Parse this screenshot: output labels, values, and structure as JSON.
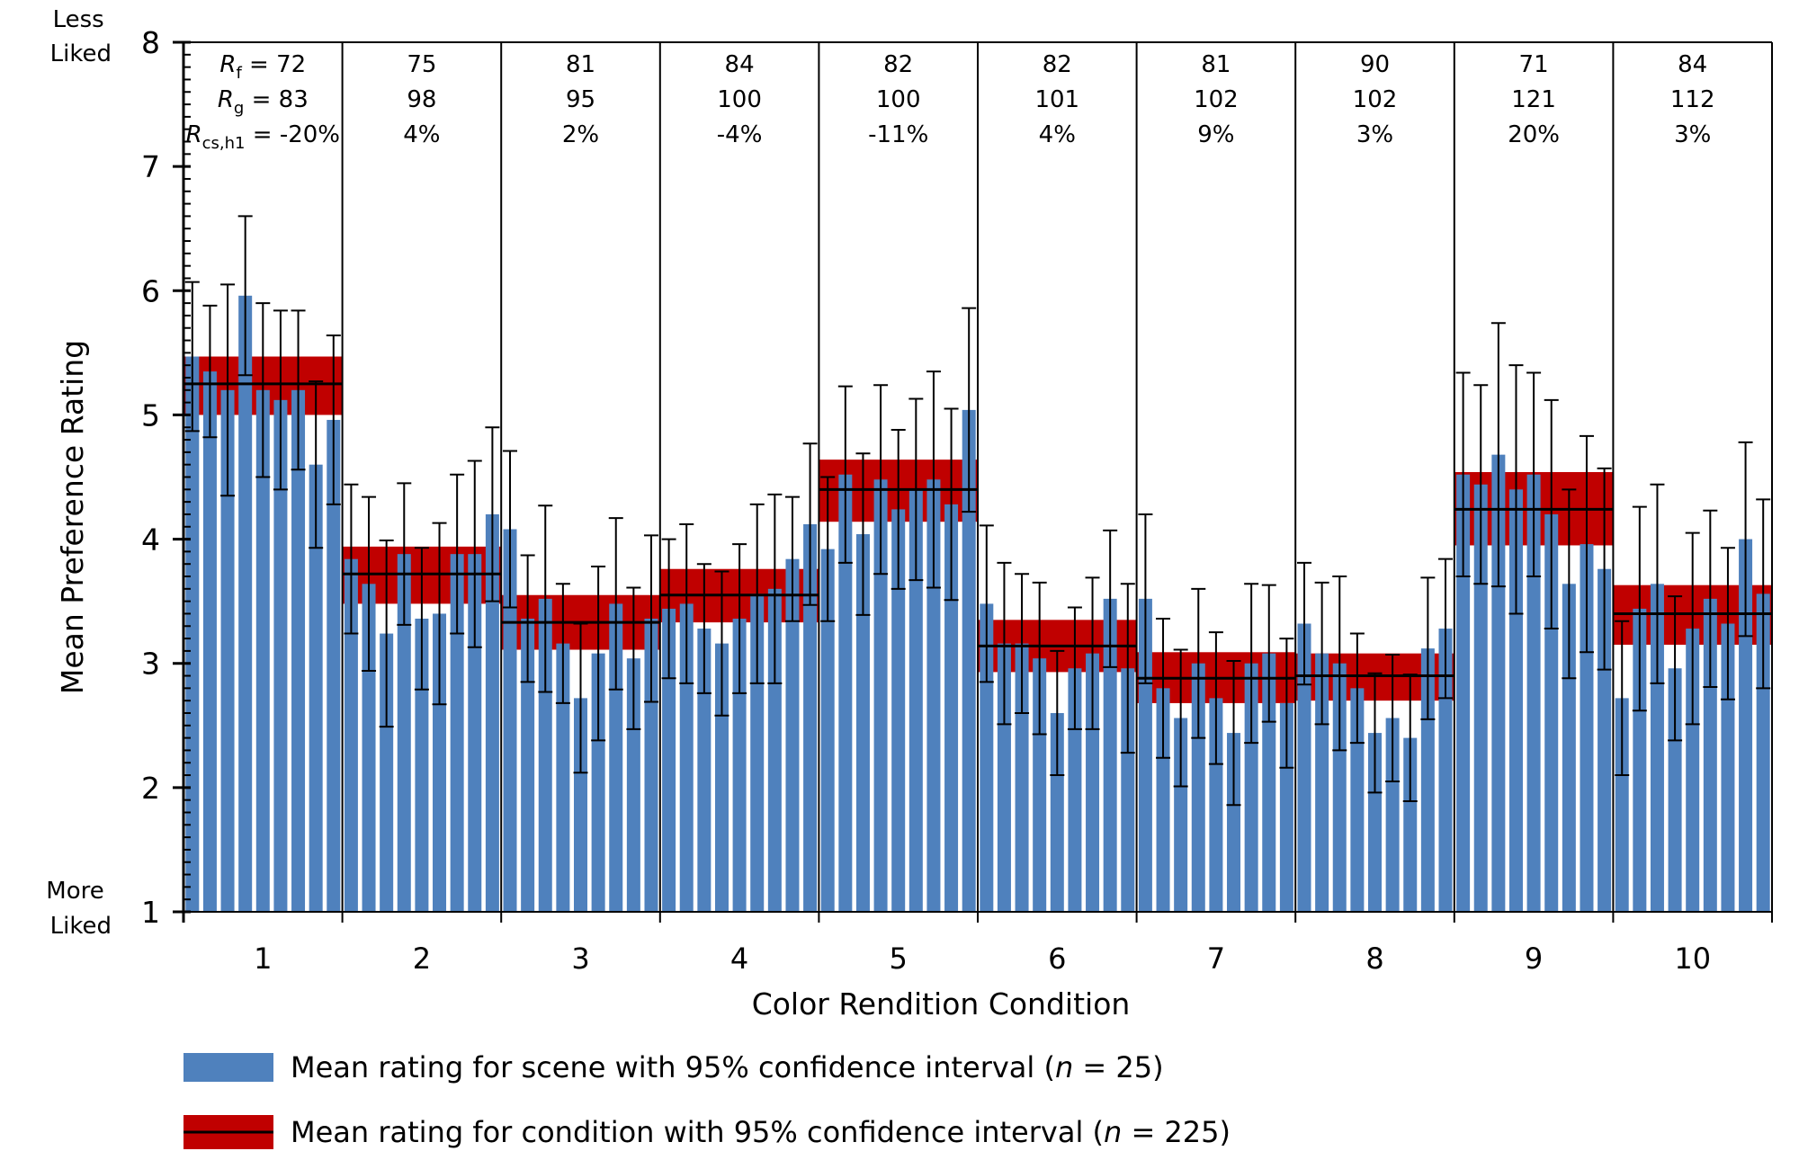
{
  "chart_data": {
    "type": "bar",
    "xlabel": "Color Rendition Condition",
    "ylabel": "Mean Preference Rating",
    "ylim": [
      1,
      8
    ],
    "yticks": [
      "1",
      "2",
      "3",
      "4",
      "5",
      "6",
      "7",
      "8"
    ],
    "y_top_note": [
      "Less",
      "Liked"
    ],
    "y_bottom_note": [
      "More",
      "Liked"
    ],
    "categories": [
      "1",
      "2",
      "3",
      "4",
      "5",
      "6",
      "7",
      "8",
      "9",
      "10"
    ],
    "metric_labels": {
      "rf": {
        "sym": "R",
        "sub": "f"
      },
      "rg": {
        "sym": "R",
        "sub": "g"
      },
      "rcs": {
        "sym": "R",
        "sub": "cs,h1"
      }
    },
    "rf": [
      "72",
      "75",
      "81",
      "84",
      "82",
      "82",
      "81",
      "90",
      "71",
      "84"
    ],
    "rg": [
      "83",
      "98",
      "95",
      "100",
      "100",
      "101",
      "102",
      "102",
      "121",
      "112"
    ],
    "rcs": [
      "-20%",
      "4%",
      "2%",
      "-4%",
      "-11%",
      "4%",
      "9%",
      "3%",
      "20%",
      "3%"
    ],
    "scene_means": [
      [
        5.47,
        5.35,
        5.2,
        5.96,
        5.2,
        5.12,
        5.2,
        4.6,
        4.96
      ],
      [
        3.84,
        3.64,
        3.24,
        3.88,
        3.36,
        3.4,
        3.88,
        3.88,
        4.2
      ],
      [
        4.08,
        3.36,
        3.52,
        3.16,
        2.72,
        3.08,
        3.48,
        3.04,
        3.36
      ],
      [
        3.44,
        3.48,
        3.28,
        3.16,
        3.36,
        3.56,
        3.6,
        3.84,
        4.12
      ],
      [
        3.92,
        4.52,
        4.04,
        4.48,
        4.24,
        4.4,
        4.48,
        4.28,
        5.04
      ],
      [
        3.48,
        3.16,
        3.16,
        3.04,
        2.6,
        2.96,
        3.08,
        3.52,
        2.96
      ],
      [
        3.52,
        2.8,
        2.56,
        3.0,
        2.72,
        2.44,
        3.0,
        3.08,
        2.68
      ],
      [
        3.32,
        3.08,
        3.0,
        2.8,
        2.44,
        2.56,
        2.4,
        3.12,
        3.28
      ],
      [
        4.52,
        4.44,
        4.68,
        4.4,
        4.52,
        4.2,
        3.64,
        3.96,
        3.76
      ],
      [
        2.72,
        3.44,
        3.64,
        2.96,
        3.28,
        3.52,
        3.32,
        4.0,
        3.56
      ]
    ],
    "scene_ci": [
      [
        0.6,
        0.53,
        0.85,
        0.64,
        0.7,
        0.72,
        0.64,
        0.67,
        0.68
      ],
      [
        0.6,
        0.7,
        0.75,
        0.57,
        0.57,
        0.73,
        0.64,
        0.75,
        0.7
      ],
      [
        0.63,
        0.51,
        0.75,
        0.48,
        0.6,
        0.7,
        0.69,
        0.57,
        0.67
      ],
      [
        0.56,
        0.64,
        0.52,
        0.58,
        0.6,
        0.72,
        0.76,
        0.5,
        0.65
      ],
      [
        0.58,
        0.71,
        0.65,
        0.76,
        0.64,
        0.73,
        0.87,
        0.77,
        0.82
      ],
      [
        0.63,
        0.65,
        0.56,
        0.61,
        0.5,
        0.49,
        0.61,
        0.55,
        0.68
      ],
      [
        0.68,
        0.56,
        0.55,
        0.6,
        0.53,
        0.58,
        0.64,
        0.55,
        0.52
      ],
      [
        0.49,
        0.57,
        0.7,
        0.44,
        0.48,
        0.51,
        0.51,
        0.57,
        0.56
      ],
      [
        0.82,
        0.8,
        1.06,
        1.0,
        0.82,
        0.92,
        0.76,
        0.87,
        0.81
      ],
      [
        0.62,
        0.82,
        0.8,
        0.58,
        0.77,
        0.71,
        0.61,
        0.78,
        0.76
      ]
    ],
    "condition_means": [
      5.25,
      3.72,
      3.33,
      3.55,
      4.4,
      3.14,
      2.88,
      2.9,
      4.24,
      3.4
    ],
    "condition_ci": [
      [
        5.0,
        5.47
      ],
      [
        3.48,
        3.94
      ],
      [
        3.11,
        3.55
      ],
      [
        3.33,
        3.76
      ],
      [
        4.14,
        4.64
      ],
      [
        2.93,
        3.35
      ],
      [
        2.68,
        3.09
      ],
      [
        2.7,
        3.08
      ],
      [
        3.95,
        4.54
      ],
      [
        3.15,
        3.63
      ]
    ],
    "legend": [
      {
        "pre": "Mean rating for scene with 95% confidence interval (",
        "ital": "n",
        "post": " = 25)"
      },
      {
        "pre": "Mean rating for condition with 95% confidence interval (",
        "ital": "n",
        "post": " = 225)"
      }
    ],
    "legend_placement": "bottom-left",
    "colors": {
      "scene_bar": "#4f81bd",
      "condition_band": "#c00000",
      "line": "#000000"
    },
    "grid": false
  }
}
